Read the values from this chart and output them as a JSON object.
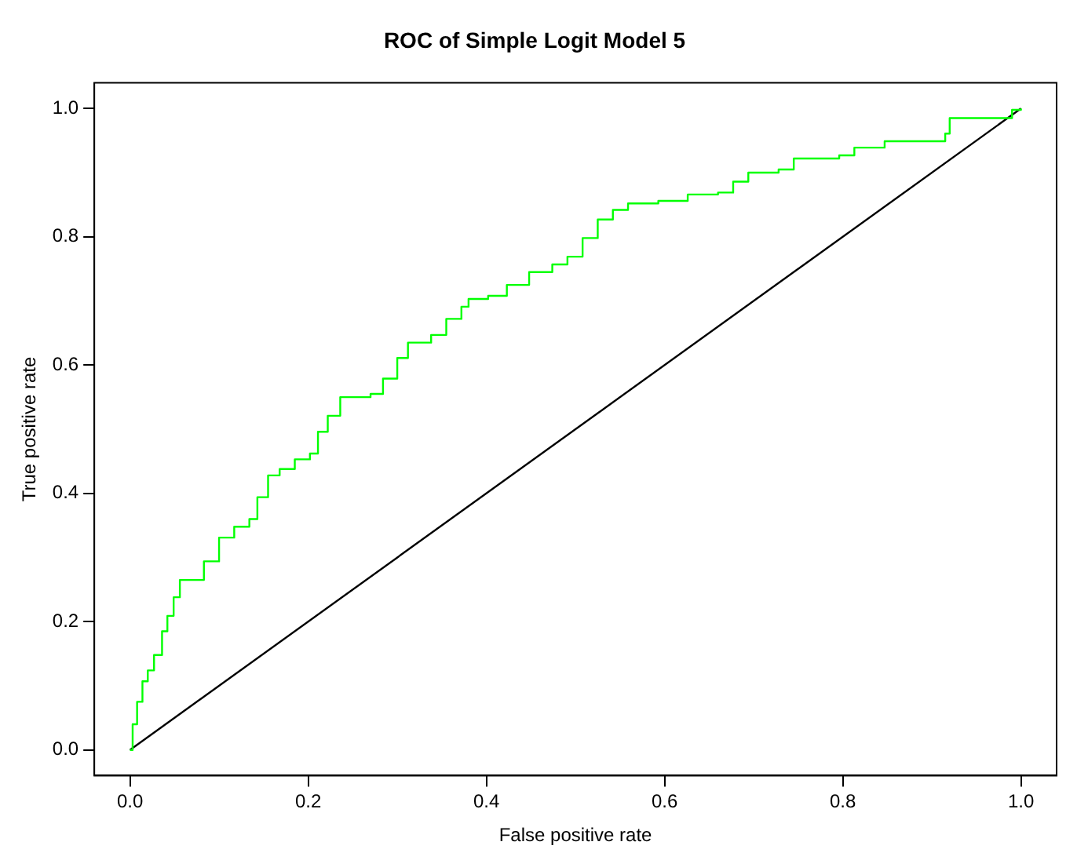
{
  "chart_data": {
    "type": "step",
    "title": "ROC of Simple Logit Model 5",
    "xlabel": "False positive rate",
    "ylabel": "True positive rate",
    "xlim": [
      -0.04,
      1.04
    ],
    "ylim": [
      -0.04,
      1.04
    ],
    "xticks": [
      {
        "value": 0,
        "label": "0.0"
      },
      {
        "value": 0.2,
        "label": "0.2"
      },
      {
        "value": 0.4,
        "label": "0.4"
      },
      {
        "value": 0.6,
        "label": "0.6"
      },
      {
        "value": 0.8,
        "label": "0.8"
      },
      {
        "value": 1,
        "label": "1.0"
      }
    ],
    "yticks": [
      {
        "value": 0,
        "label": "0.0"
      },
      {
        "value": 0.2,
        "label": "0.2"
      },
      {
        "value": 0.4,
        "label": "0.4"
      },
      {
        "value": 0.6,
        "label": "0.6"
      },
      {
        "value": 0.8,
        "label": "0.8"
      },
      {
        "value": 1,
        "label": "1.0"
      }
    ],
    "grid": false,
    "legend": false,
    "marker": "none",
    "line_style": "solid",
    "series": [
      {
        "type": "step",
        "color": "#00ff00",
        "x": [
          0,
          0.003,
          0.008,
          0.014,
          0.02,
          0.027,
          0.036,
          0.042,
          0.049,
          0.056,
          0.075,
          0.083,
          0.1,
          0.117,
          0.134,
          0.143,
          0.155,
          0.168,
          0.185,
          0.202,
          0.211,
          0.222,
          0.236,
          0.27,
          0.284,
          0.3,
          0.312,
          0.338,
          0.355,
          0.372,
          0.38,
          0.402,
          0.423,
          0.448,
          0.474,
          0.491,
          0.508,
          0.525,
          0.542,
          0.559,
          0.593,
          0.626,
          0.66,
          0.677,
          0.694,
          0.728,
          0.745,
          0.796,
          0.813,
          0.847,
          0.898,
          0.915,
          0.92,
          0.98,
          0.99,
          1
        ],
        "values": [
          0,
          0.04,
          0.075,
          0.107,
          0.124,
          0.148,
          0.185,
          0.209,
          0.238,
          0.265,
          0.265,
          0.294,
          0.331,
          0.348,
          0.36,
          0.394,
          0.428,
          0.438,
          0.453,
          0.462,
          0.496,
          0.521,
          0.55,
          0.555,
          0.579,
          0.611,
          0.635,
          0.647,
          0.672,
          0.691,
          0.703,
          0.708,
          0.725,
          0.745,
          0.757,
          0.769,
          0.798,
          0.827,
          0.842,
          0.852,
          0.856,
          0.866,
          0.869,
          0.886,
          0.9,
          0.905,
          0.922,
          0.927,
          0.939,
          0.949,
          0.949,
          0.961,
          0.985,
          0.985,
          0.998,
          1
        ]
      },
      {
        "type": "line",
        "color": "#000000",
        "x": [
          0,
          1
        ],
        "values": [
          0,
          1
        ]
      }
    ]
  }
}
